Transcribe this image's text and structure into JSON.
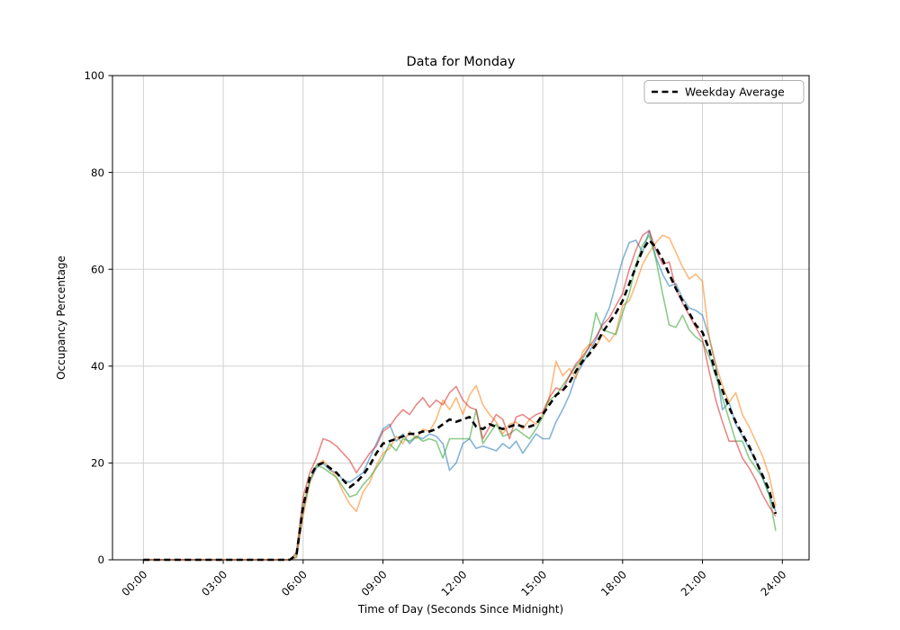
{
  "window": {
    "background": "#ffffff"
  },
  "chart_data": {
    "type": "line",
    "title": "Data for Monday",
    "xlabel": "Time of Day (Seconds Since Midnight)",
    "ylabel": "Occupancy Percentage",
    "ylim": [
      0,
      100
    ],
    "xlim_hours": [
      -1.19,
      24.94
    ],
    "grid": true,
    "grid_color": "#cccccc",
    "spine_color": "#000000",
    "legend": {
      "label": "Weekday Average",
      "position": "upper right"
    },
    "xtick_hours": [
      0,
      3,
      6,
      9,
      12,
      15,
      18,
      21,
      24
    ],
    "xtick_labels": [
      "00:00",
      "03:00",
      "06:00",
      "09:00",
      "12:00",
      "15:00",
      "18:00",
      "21:00",
      "24:00"
    ],
    "ytick_values": [
      0,
      20,
      40,
      60,
      80,
      100
    ],
    "ytick_labels": [
      "0",
      "20",
      "40",
      "60",
      "80",
      "100"
    ],
    "x_start_hour": 0,
    "x_step_hours": 0.25,
    "series": [
      {
        "name": "series-1",
        "color": "#1f77b4",
        "opacity": 0.55,
        "dash": false,
        "width": 1.6,
        "values": [
          0,
          0,
          0,
          0,
          0,
          0,
          0,
          0,
          0,
          0,
          0,
          0,
          0,
          0,
          0,
          0,
          0,
          0,
          0,
          0,
          0,
          0,
          0,
          0.5,
          10,
          16,
          19,
          20,
          18.5,
          18,
          16.5,
          16,
          17,
          18,
          21,
          24,
          27,
          28,
          24.5,
          26,
          24,
          25.5,
          25,
          26,
          25.5,
          24,
          18.5,
          20,
          24,
          25,
          23,
          23.5,
          23,
          22.5,
          24,
          23,
          24.5,
          22,
          24,
          26,
          25,
          25,
          28.5,
          31,
          34,
          38,
          40.5,
          43,
          45.5,
          49,
          52,
          57,
          62,
          65.5,
          66,
          63.5,
          68,
          62.5,
          59,
          56.5,
          57,
          54,
          52,
          51.5,
          50.5,
          46,
          40,
          31,
          32.5,
          28,
          25.5,
          23,
          20.5,
          17,
          13.5,
          10
        ]
      },
      {
        "name": "series-2",
        "color": "#ff7f0e",
        "opacity": 0.55,
        "dash": false,
        "width": 1.6,
        "values": [
          0,
          0,
          0,
          0,
          0,
          0,
          0,
          0,
          0,
          0,
          0,
          0,
          0,
          0,
          0,
          0,
          0,
          0,
          0,
          0,
          0,
          0,
          0,
          0.5,
          9,
          16,
          19.5,
          20.5,
          19,
          17,
          14,
          11.5,
          10,
          14,
          16,
          19.5,
          22,
          23,
          25.5,
          24,
          26.5,
          25,
          27,
          26.5,
          29,
          33,
          31,
          33.5,
          30,
          34,
          36,
          32,
          30,
          28.5,
          26,
          28,
          28.5,
          27,
          29,
          28,
          30,
          33.5,
          41,
          38,
          39.5,
          37.5,
          43,
          44.5,
          44,
          46.5,
          45,
          47,
          52.5,
          53.5,
          57,
          61,
          63.5,
          65.5,
          67,
          66.5,
          63.5,
          60.5,
          58,
          59,
          57.5,
          46,
          40.5,
          36,
          32.5,
          34.5,
          30,
          27.5,
          24.5,
          21.5,
          17.5,
          11
        ]
      },
      {
        "name": "series-3",
        "color": "#2ca02c",
        "opacity": 0.55,
        "dash": false,
        "width": 1.6,
        "values": [
          0,
          0,
          0,
          0,
          0,
          0,
          0,
          0,
          0,
          0,
          0,
          0,
          0,
          0,
          0,
          0,
          0,
          0,
          0,
          0,
          0,
          0,
          0,
          1,
          11,
          16.5,
          19.5,
          19,
          18,
          17,
          15,
          13,
          13.5,
          15.5,
          17,
          19,
          21,
          24,
          22.5,
          25,
          24.5,
          25.5,
          24.5,
          25,
          24.5,
          21,
          25,
          25,
          25,
          25,
          31,
          24,
          26,
          28,
          25.5,
          26,
          27,
          26,
          25,
          27,
          29.5,
          33,
          34,
          36,
          38,
          40,
          41.5,
          44,
          51,
          47.5,
          47,
          46.5,
          51,
          55,
          61,
          65,
          67,
          62,
          55,
          48.5,
          48,
          50.5,
          47.5,
          46,
          45,
          42,
          38,
          33.5,
          29,
          24.5,
          24.5,
          21,
          19,
          17,
          13.5,
          6
        ]
      },
      {
        "name": "series-4",
        "color": "#d62728",
        "opacity": 0.55,
        "dash": false,
        "width": 1.6,
        "values": [
          0,
          0,
          0,
          0,
          0,
          0,
          0,
          0,
          0,
          0,
          0,
          0,
          0,
          0,
          0,
          0,
          0,
          0,
          0,
          0,
          0,
          0,
          0,
          1.5,
          13,
          18,
          21,
          25,
          24.5,
          23.5,
          22,
          20.5,
          18,
          20,
          22,
          23.5,
          26.5,
          27.5,
          29.5,
          31,
          30,
          32,
          33.5,
          31.5,
          33,
          32,
          34.5,
          35.8,
          33,
          31.5,
          31,
          25,
          27.5,
          30,
          29,
          25,
          29.5,
          30,
          29,
          30,
          30.5,
          33.5,
          35.5,
          35,
          38,
          40.5,
          42,
          44,
          46,
          48.5,
          50,
          52.5,
          55,
          60,
          64,
          67,
          68,
          64,
          61,
          61.5,
          56,
          53,
          50.5,
          48,
          45.5,
          39,
          33,
          28.5,
          24.5,
          24.5,
          21,
          19,
          16.5,
          13.5,
          11,
          9
        ]
      },
      {
        "name": "weekday-average",
        "color": "#000000",
        "opacity": 1,
        "dash": true,
        "width": 2.6,
        "values": [
          0,
          0,
          0,
          0,
          0,
          0,
          0,
          0,
          0,
          0,
          0,
          0,
          0,
          0,
          0,
          0,
          0,
          0,
          0,
          0,
          0,
          0,
          0,
          1,
          11,
          17,
          19.5,
          20,
          19,
          18,
          16.5,
          15,
          16,
          17.5,
          19.5,
          22,
          24,
          24.5,
          25,
          25.5,
          26,
          26,
          26.5,
          26.5,
          27,
          28,
          29,
          28.5,
          29,
          29.5,
          27.5,
          27,
          28,
          27.5,
          27,
          27.5,
          28,
          27.5,
          27.5,
          28,
          30,
          32,
          34,
          35,
          36.5,
          39,
          41,
          42.5,
          44.5,
          47,
          49,
          51,
          53.5,
          57,
          60.5,
          64,
          66,
          64.5,
          62,
          59,
          56,
          53.5,
          51,
          48.5,
          47,
          43.5,
          38.5,
          35,
          31.5,
          28.5,
          26,
          23.5,
          20.5,
          17.5,
          14.5,
          9.5
        ]
      }
    ]
  }
}
